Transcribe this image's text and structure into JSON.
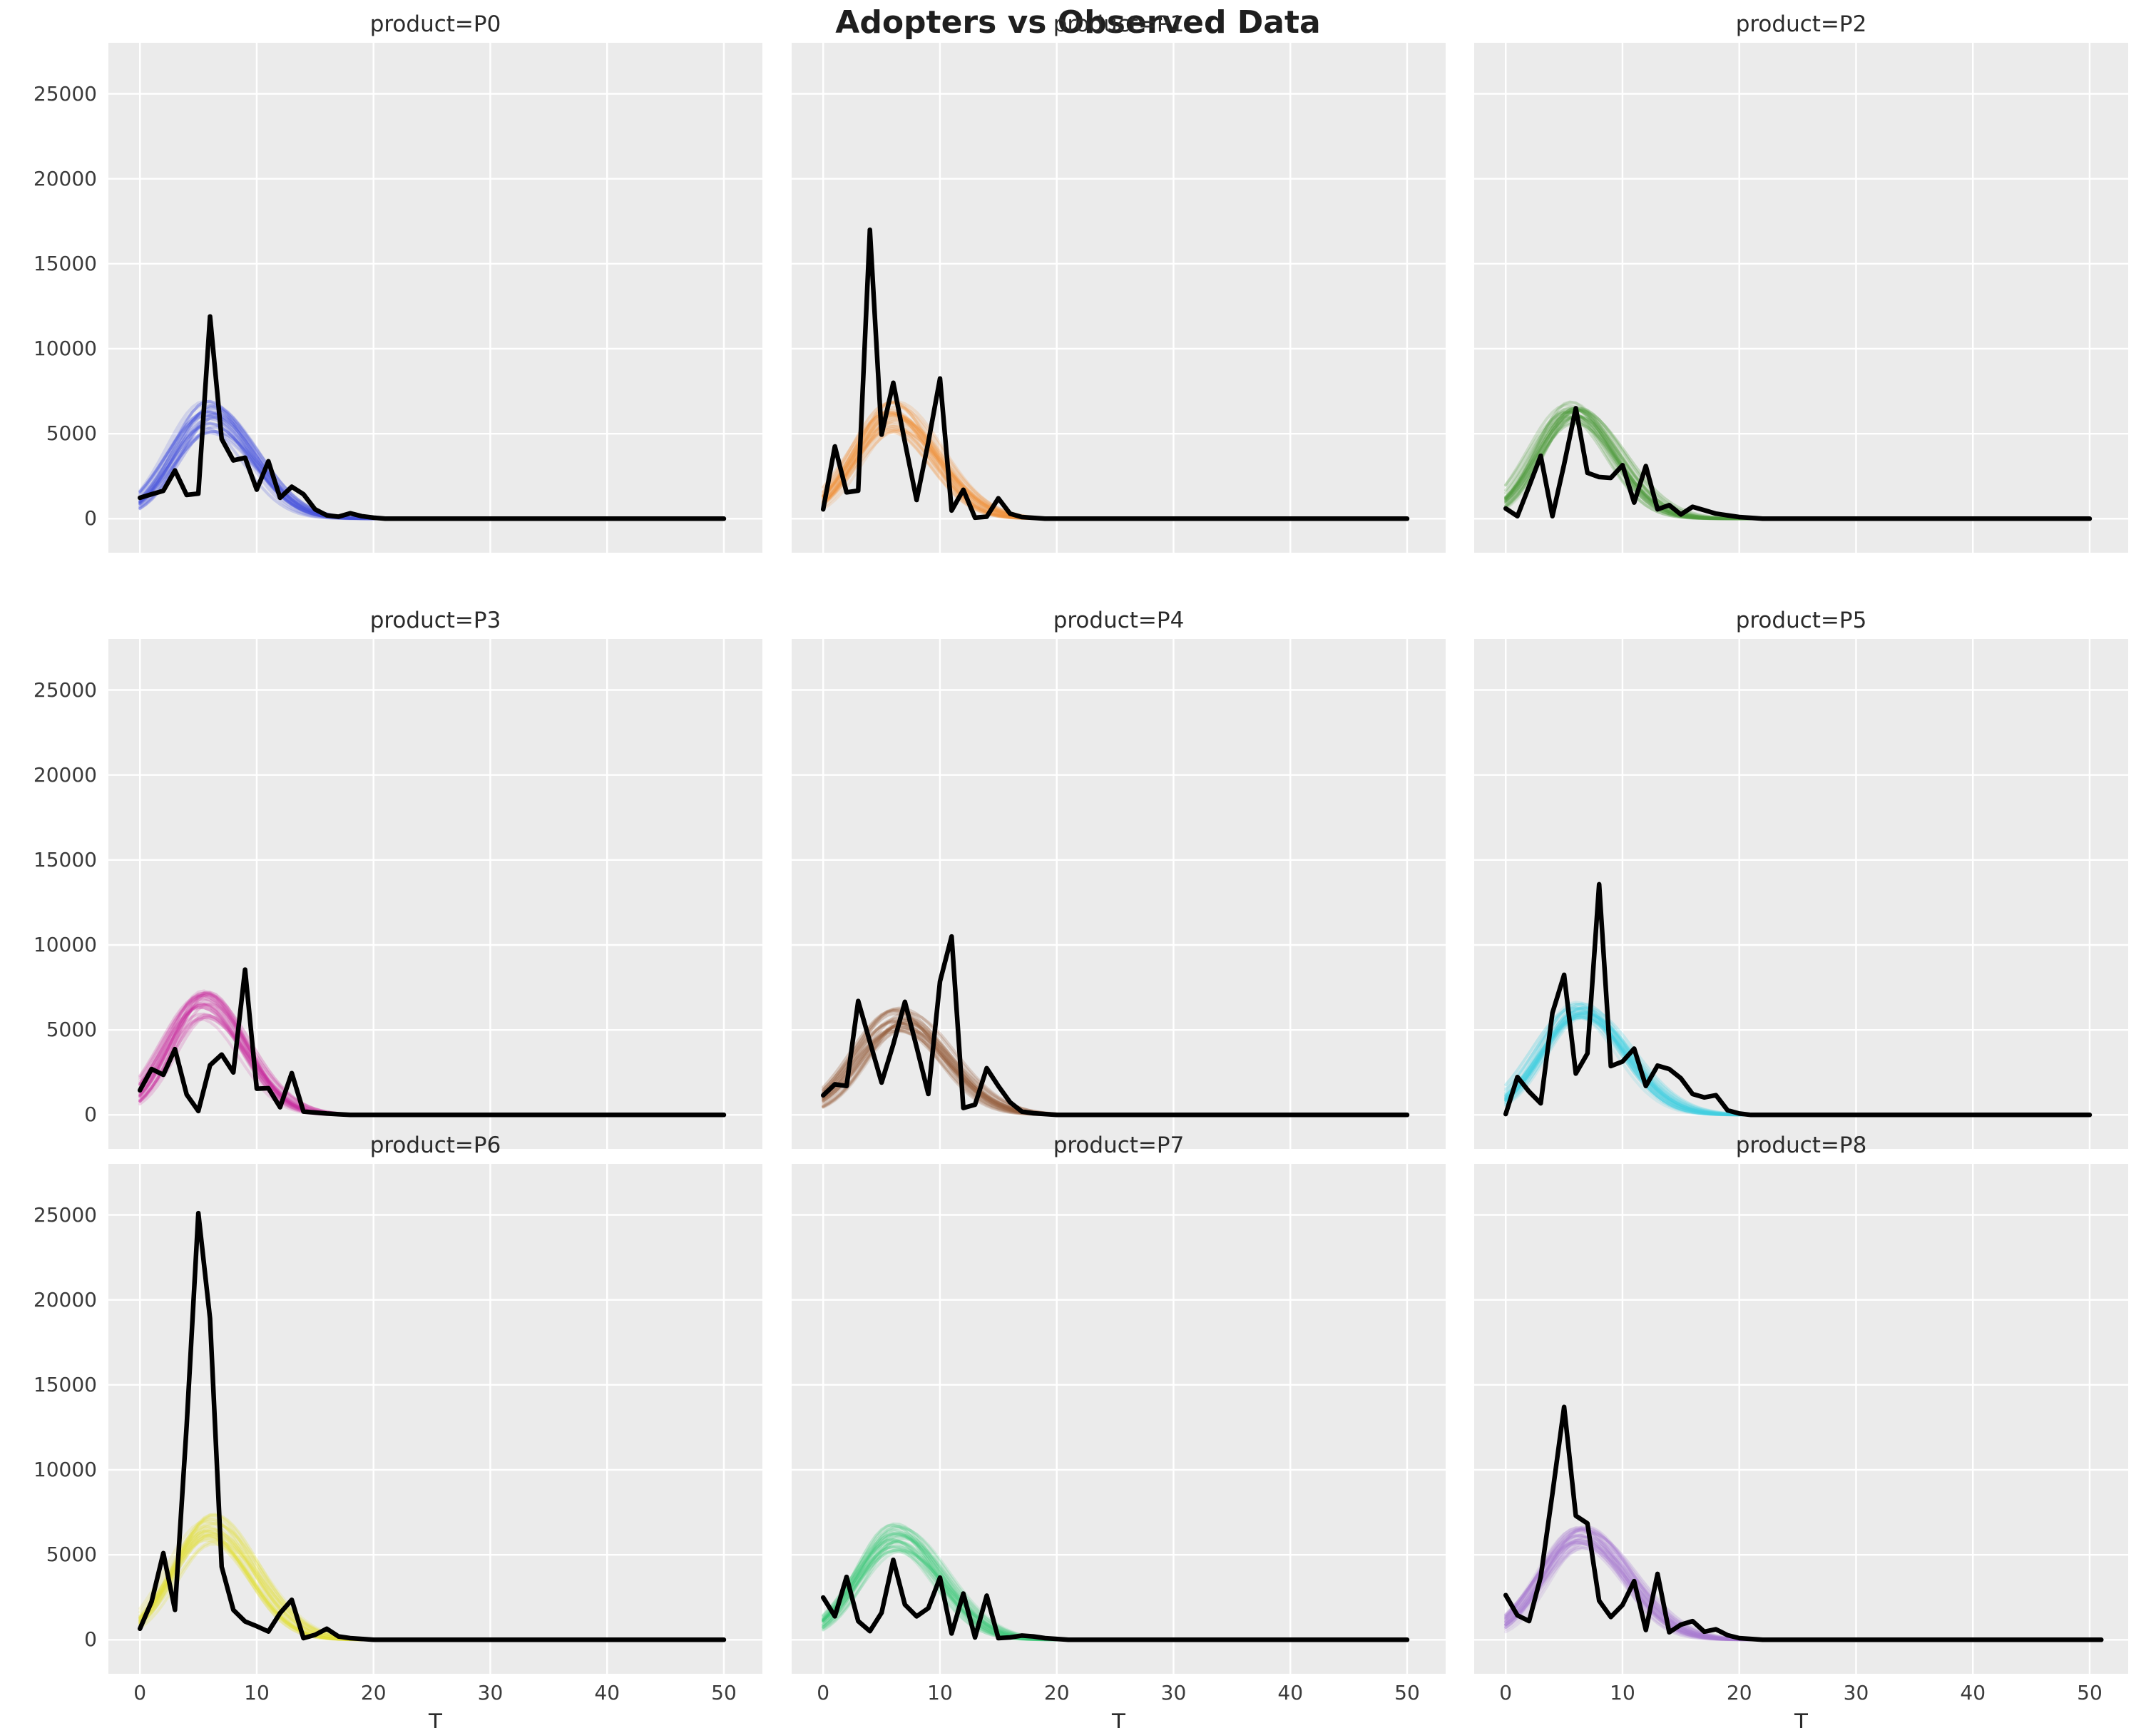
{
  "title": "Adopters vs Observed Data",
  "style": {
    "axes_background": "#ebebeb",
    "grid_color": "#ffffff",
    "observed_color": "#000000",
    "text_color": "#2b2b2b"
  },
  "chart_data": {
    "type": "line",
    "layout": "3x3 facet grid",
    "xlabel": "T",
    "x_ticks": [
      0,
      10,
      20,
      30,
      40,
      50
    ],
    "y_ticks": [
      0,
      5000,
      10000,
      15000,
      20000,
      25000
    ],
    "xlim": [
      -2.7,
      53.3
    ],
    "ylim": [
      -2000,
      28000
    ],
    "grid": true,
    "legend": "none",
    "facets": [
      {
        "product": "P0",
        "title": "product=P0",
        "band_color": "#4652dc",
        "band": {
          "n_curves": 26,
          "seed": 1,
          "center": [
            5.4,
            6.6
          ],
          "peak": [
            5000,
            7100
          ],
          "width": [
            2.9,
            3.6
          ]
        },
        "observed": [
          1230,
          1440,
          1640,
          2840,
          1400,
          1480,
          11900,
          4690,
          3430,
          3590,
          1710,
          3380,
          1230,
          1880,
          1440,
          550,
          200,
          120,
          320,
          150,
          60,
          0,
          0,
          0,
          0,
          0,
          0,
          0,
          0,
          0,
          0,
          0,
          0,
          0,
          0,
          0,
          0,
          0,
          0,
          0,
          0,
          0,
          0,
          0,
          0,
          0,
          0,
          0,
          0,
          0,
          0
        ]
      },
      {
        "product": "P1",
        "title": "product=P1",
        "band_color": "#f0913a",
        "band": {
          "n_curves": 26,
          "seed": 2,
          "center": [
            5.5,
            6.5
          ],
          "peak": [
            5100,
            6900
          ],
          "width": [
            2.9,
            3.6
          ]
        },
        "observed": [
          550,
          4250,
          1550,
          1650,
          17000,
          4950,
          8000,
          4500,
          1100,
          4500,
          8250,
          480,
          1700,
          60,
          120,
          1200,
          300,
          100,
          50,
          0,
          0,
          0,
          0,
          0,
          0,
          0,
          0,
          0,
          0,
          0,
          0,
          0,
          0,
          0,
          0,
          0,
          0,
          0,
          0,
          0,
          0,
          0,
          0,
          0,
          0,
          0,
          0,
          0,
          0,
          0,
          0
        ]
      },
      {
        "product": "P2",
        "title": "product=P2",
        "band_color": "#4e9a3d",
        "band": {
          "n_curves": 26,
          "seed": 3,
          "center": [
            5.2,
            6.3
          ],
          "peak": [
            5400,
            6900
          ],
          "width": [
            2.8,
            3.5
          ]
        },
        "observed": [
          600,
          150,
          1900,
          3700,
          150,
          3200,
          6500,
          2700,
          2450,
          2400,
          3150,
          950,
          3100,
          550,
          800,
          250,
          700,
          500,
          300,
          200,
          100,
          50,
          0,
          0,
          0,
          0,
          0,
          0,
          0,
          0,
          0,
          0,
          0,
          0,
          0,
          0,
          0,
          0,
          0,
          0,
          0,
          0,
          0,
          0,
          0,
          0,
          0,
          0,
          0,
          0,
          0
        ]
      },
      {
        "product": "P3",
        "title": "product=P3",
        "band_color": "#c9309f",
        "band": {
          "n_curves": 26,
          "seed": 4,
          "center": [
            5.0,
            6.0
          ],
          "peak": [
            5600,
            7300
          ],
          "width": [
            2.8,
            3.5
          ]
        },
        "observed": [
          1450,
          2700,
          2360,
          3870,
          1200,
          230,
          2920,
          3550,
          2500,
          8550,
          1540,
          1570,
          450,
          2460,
          200,
          140,
          80,
          40,
          0,
          0,
          0,
          0,
          0,
          0,
          0,
          0,
          0,
          0,
          0,
          0,
          0,
          0,
          0,
          0,
          0,
          0,
          0,
          0,
          0,
          0,
          0,
          0,
          0,
          0,
          0,
          0,
          0,
          0,
          0,
          0,
          0
        ]
      },
      {
        "product": "P4",
        "title": "product=P4",
        "band_color": "#96603f",
        "band": {
          "n_curves": 26,
          "seed": 5,
          "center": [
            6.0,
            7.2
          ],
          "peak": [
            4800,
            6400
          ],
          "width": [
            3.1,
            3.9
          ]
        },
        "observed": [
          1150,
          1800,
          1700,
          6700,
          4300,
          1900,
          4150,
          6650,
          4000,
          1230,
          7850,
          10500,
          410,
          600,
          2750,
          1700,
          750,
          200,
          100,
          50,
          0,
          0,
          0,
          0,
          0,
          0,
          0,
          0,
          0,
          0,
          0,
          0,
          0,
          0,
          0,
          0,
          0,
          0,
          0,
          0,
          0,
          0,
          0,
          0,
          0,
          0,
          0,
          0,
          0,
          0,
          0
        ]
      },
      {
        "product": "P5",
        "title": "product=P5",
        "band_color": "#44cfe1",
        "band": {
          "n_curves": 26,
          "seed": 6,
          "center": [
            5.8,
            6.8
          ],
          "peak": [
            5700,
            6700
          ],
          "width": [
            3.0,
            3.7
          ]
        },
        "observed": [
          50,
          2230,
          1370,
          680,
          6000,
          8240,
          2430,
          3620,
          13570,
          2870,
          3140,
          3900,
          1700,
          2900,
          2700,
          2160,
          1230,
          1030,
          1160,
          270,
          80,
          0,
          0,
          0,
          0,
          0,
          0,
          0,
          0,
          0,
          0,
          0,
          0,
          0,
          0,
          0,
          0,
          0,
          0,
          0,
          0,
          0,
          0,
          0,
          0,
          0,
          0,
          0,
          0,
          0,
          0
        ]
      },
      {
        "product": "P6",
        "title": "product=P6",
        "band_color": "#e2df3a",
        "band": {
          "n_curves": 26,
          "seed": 7,
          "center": [
            5.5,
            6.5
          ],
          "peak": [
            5600,
            7400
          ],
          "width": [
            2.9,
            3.6
          ]
        },
        "observed": [
          650,
          2250,
          5100,
          1760,
          12600,
          25100,
          18900,
          4300,
          1760,
          1080,
          800,
          490,
          1570,
          2350,
          100,
          290,
          650,
          200,
          100,
          50,
          0,
          0,
          0,
          0,
          0,
          0,
          0,
          0,
          0,
          0,
          0,
          0,
          0,
          0,
          0,
          0,
          0,
          0,
          0,
          0,
          0,
          0,
          0,
          0,
          0,
          0,
          0,
          0,
          0,
          0,
          0
        ]
      },
      {
        "product": "P7",
        "title": "product=P7",
        "band_color": "#3bc878",
        "band": {
          "n_curves": 26,
          "seed": 8,
          "center": [
            5.8,
            6.9
          ],
          "peak": [
            5200,
            6900
          ],
          "width": [
            3.0,
            3.7
          ]
        },
        "observed": [
          2490,
          1380,
          3700,
          1100,
          510,
          1590,
          4700,
          2070,
          1380,
          1860,
          3660,
          370,
          2720,
          140,
          2600,
          100,
          140,
          250,
          200,
          100,
          50,
          0,
          0,
          0,
          0,
          0,
          0,
          0,
          0,
          0,
          0,
          0,
          0,
          0,
          0,
          0,
          0,
          0,
          0,
          0,
          0,
          0,
          0,
          0,
          0,
          0,
          0,
          0,
          0,
          0,
          0
        ]
      },
      {
        "product": "P8",
        "title": "product=P8",
        "band_color": "#a87bd1",
        "band": {
          "n_curves": 26,
          "seed": 9,
          "center": [
            6.0,
            7.1
          ],
          "peak": [
            5300,
            6700
          ],
          "width": [
            3.0,
            3.8
          ]
        },
        "observed": [
          2630,
          1440,
          1100,
          3700,
          8600,
          13700,
          7300,
          6850,
          2300,
          1340,
          2050,
          3450,
          575,
          3880,
          440,
          890,
          1100,
          480,
          620,
          270,
          100,
          50,
          0,
          0,
          0,
          0,
          0,
          0,
          0,
          0,
          0,
          0,
          0,
          0,
          0,
          0,
          0,
          0,
          0,
          0,
          0,
          0,
          0,
          0,
          0,
          0,
          0,
          0,
          0,
          0,
          0,
          0
        ]
      }
    ]
  }
}
